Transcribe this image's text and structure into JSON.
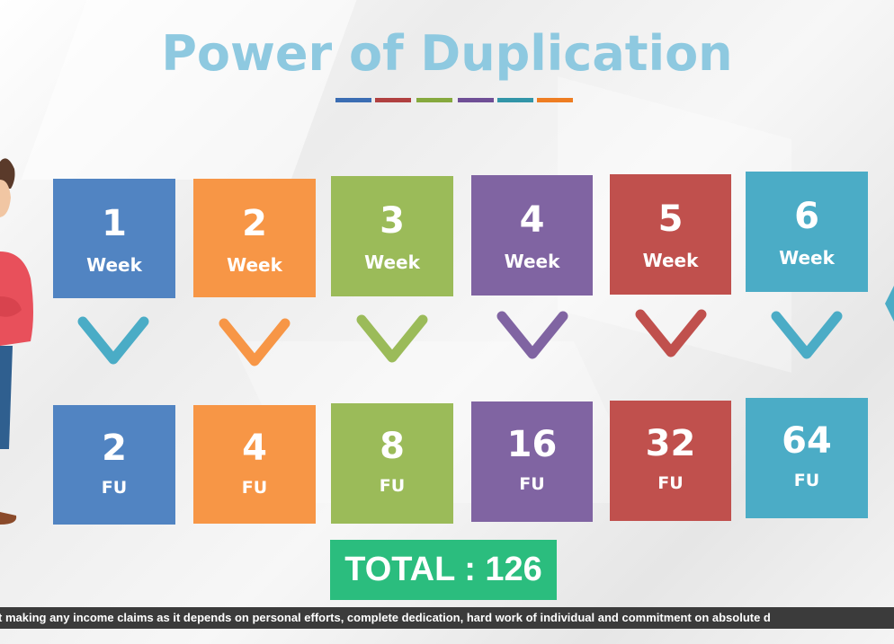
{
  "title": "Power of Duplication",
  "divider_colors": [
    "#3b6db3",
    "#b04040",
    "#86a93e",
    "#6f4f96",
    "#3295a8",
    "#ee7d22"
  ],
  "weeks": [
    {
      "num": "1",
      "unit": "Week",
      "color": "#5184c2",
      "chevron_color": "#4aacc6"
    },
    {
      "num": "2",
      "unit": "Week",
      "color": "#f79646",
      "chevron_color": "#f79646"
    },
    {
      "num": "3",
      "unit": "Week",
      "color": "#9bbb59",
      "chevron_color": "#9bbb59"
    },
    {
      "num": "4",
      "unit": "Week",
      "color": "#8064a2",
      "chevron_color": "#8064a2"
    },
    {
      "num": "5",
      "unit": "Week",
      "color": "#c0504d",
      "chevron_color": "#c0504d"
    },
    {
      "num": "6",
      "unit": "Week",
      "color": "#4bacc6",
      "chevron_color": "#4bacc6"
    }
  ],
  "results": [
    {
      "num": "2",
      "unit": "FU",
      "color": "#5184c2"
    },
    {
      "num": "4",
      "unit": "FU",
      "color": "#f79646"
    },
    {
      "num": "8",
      "unit": "FU",
      "color": "#9bbb59"
    },
    {
      "num": "16",
      "unit": "FU",
      "color": "#8064a2"
    },
    {
      "num": "32",
      "unit": "FU",
      "color": "#c0504d"
    },
    {
      "num": "64",
      "unit": "FU",
      "color": "#4bacc6"
    }
  ],
  "total": "TOTAL : 126",
  "total_color": "#2bbd7e",
  "disclaimer": "t making any income claims as it depends on personal efforts, complete dedication, hard work of individual and commitment on absolute d"
}
